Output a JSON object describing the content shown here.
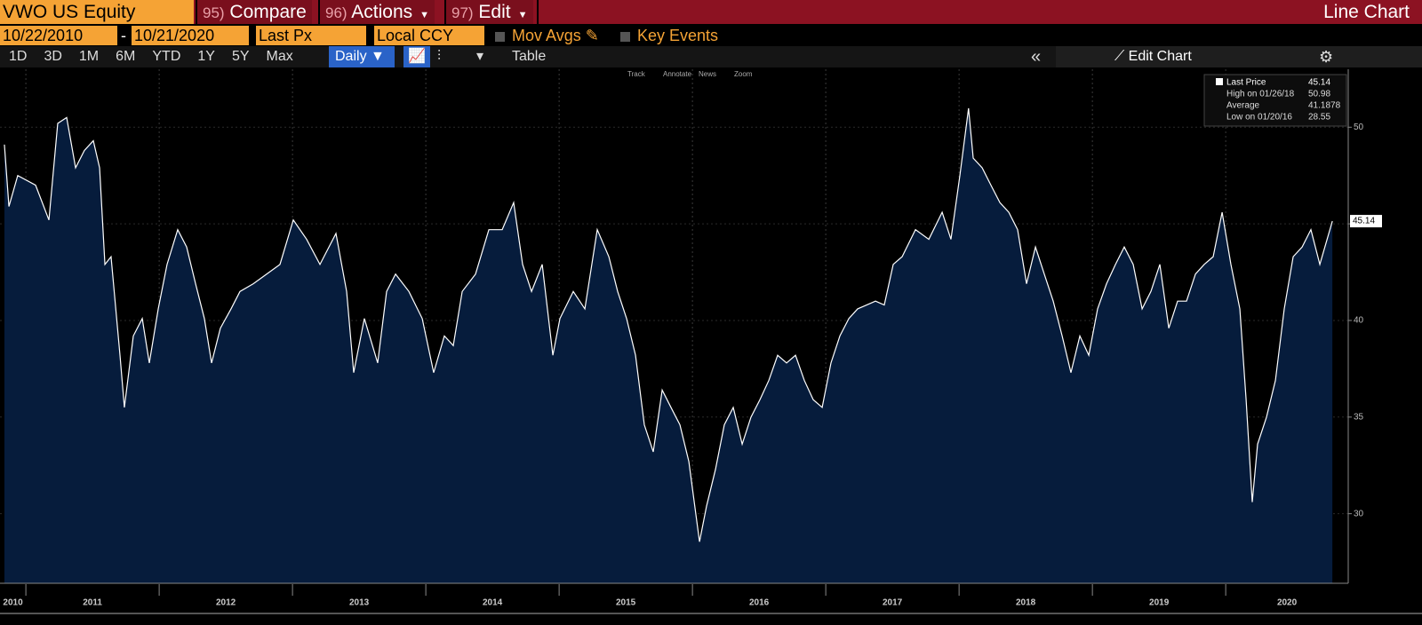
{
  "toolbar": {
    "security": "VWO US Equity",
    "menus": [
      {
        "num": "95)",
        "label": "Compare"
      },
      {
        "num": "96)",
        "label": "Actions"
      },
      {
        "num": "97)",
        "label": "Edit"
      }
    ],
    "title": "Line Chart"
  },
  "settings": {
    "start": "10/22/2010",
    "dash": "-",
    "end": "10/21/2020",
    "field": "Last Px",
    "currency": "Local CCY",
    "options": [
      "Mov Avgs",
      "Key Events"
    ]
  },
  "periods": [
    "1D",
    "3D",
    "1M",
    "6M",
    "YTD",
    "1Y",
    "5Y",
    "Max"
  ],
  "frequency": "Daily ▼",
  "table": "Table",
  "edit_chart": "Edit Chart",
  "chart_tools": [
    "Track",
    "Annotate",
    "News",
    "Zoom"
  ],
  "chart_data": {
    "type": "line",
    "x": [
      2010.839,
      2010.873,
      2010.939,
      2011.073,
      2011.173,
      2011.239,
      2011.306,
      2011.373,
      2011.439,
      2011.506,
      2011.553,
      2011.593,
      2011.639,
      2011.706,
      2011.739,
      2011.806,
      2011.873,
      2011.926,
      2011.993,
      2012.059,
      2012.139,
      2012.206,
      2012.273,
      2012.339,
      2012.393,
      2012.459,
      2012.539,
      2012.606,
      2012.706,
      2012.806,
      2012.906,
      2013.006,
      2013.106,
      2013.206,
      2013.326,
      2013.406,
      2013.459,
      2013.539,
      2013.639,
      2013.706,
      2013.773,
      2013.873,
      2013.973,
      2014.059,
      2014.139,
      2014.206,
      2014.273,
      2014.373,
      2014.473,
      2014.573,
      2014.659,
      2014.726,
      2014.793,
      2014.873,
      2014.953,
      2015.006,
      2015.106,
      2015.193,
      2015.286,
      2015.373,
      2015.439,
      2015.506,
      2015.573,
      2015.639,
      2015.706,
      2015.773,
      2015.839,
      2015.906,
      2015.973,
      2016.053,
      2016.106,
      2016.173,
      2016.239,
      2016.306,
      2016.373,
      2016.439,
      2016.506,
      2016.573,
      2016.639,
      2016.706,
      2016.773,
      2016.839,
      2016.906,
      2016.973,
      2017.039,
      2017.106,
      2017.173,
      2017.239,
      2017.306,
      2017.373,
      2017.439,
      2017.506,
      2017.573,
      2017.673,
      2017.773,
      2017.873,
      2017.939,
      2018.006,
      2018.071,
      2018.106,
      2018.173,
      2018.239,
      2018.306,
      2018.373,
      2018.439,
      2018.506,
      2018.573,
      2018.639,
      2018.706,
      2018.773,
      2018.839,
      2018.906,
      2018.973,
      2019.039,
      2019.106,
      2019.173,
      2019.239,
      2019.306,
      2019.373,
      2019.439,
      2019.506,
      2019.573,
      2019.639,
      2019.706,
      2019.773,
      2019.839,
      2019.906,
      2019.973,
      2020.039,
      2020.106,
      2020.153,
      2020.199,
      2020.239,
      2020.306,
      2020.373,
      2020.439,
      2020.506,
      2020.573,
      2020.639,
      2020.706,
      2020.8
    ],
    "series": [
      {
        "name": "Last Price",
        "color": "#ffffff",
        "fill": "#061c3c",
        "values": [
          49.1,
          45.9,
          47.5,
          47,
          45.2,
          50.2,
          50.5,
          47.9,
          48.8,
          49.3,
          47.9,
          42.9,
          43.3,
          38.2,
          35.5,
          39.2,
          40.1,
          37.8,
          40.6,
          42.9,
          44.7,
          43.8,
          41.9,
          40.1,
          37.8,
          39.6,
          40.6,
          41.5,
          41.9,
          42.4,
          42.9,
          45.2,
          44.2,
          42.9,
          44.5,
          41.5,
          37.3,
          40.1,
          37.8,
          41.5,
          42.4,
          41.5,
          40.1,
          37.3,
          39.2,
          38.7,
          41.5,
          42.4,
          44.7,
          44.7,
          46.1,
          42.9,
          41.5,
          42.9,
          38.2,
          40.1,
          41.5,
          40.6,
          44.7,
          43.3,
          41.5,
          40.1,
          38.2,
          34.6,
          33.2,
          36.4,
          35.5,
          34.6,
          32.7,
          28.55,
          30.4,
          32.3,
          34.6,
          35.5,
          33.6,
          35,
          35.9,
          36.9,
          38.2,
          37.8,
          38.2,
          36.9,
          35.9,
          35.5,
          37.8,
          39.2,
          40.1,
          40.6,
          40.8,
          41,
          40.8,
          42.9,
          43.3,
          44.7,
          44.2,
          45.6,
          44.2,
          47.5,
          50.98,
          48.4,
          47.9,
          47,
          46.1,
          45.6,
          44.7,
          41.9,
          43.8,
          42.4,
          41,
          39.2,
          37.3,
          39.2,
          38.2,
          40.6,
          41.9,
          42.9,
          43.8,
          42.9,
          40.6,
          41.5,
          42.9,
          39.6,
          41,
          41,
          42.4,
          42.9,
          43.3,
          45.6,
          42.9,
          40.6,
          35.9,
          30.6,
          33.6,
          35,
          36.9,
          40.6,
          43.3,
          43.8,
          44.7,
          42.9,
          45.14
        ]
      }
    ],
    "last_price": 45.14,
    "stats": [
      {
        "label": "High on 01/26/18",
        "value": 50.98
      },
      {
        "label": "Average",
        "value": 41.1878
      },
      {
        "label": "Low on 01/20/16",
        "value": 28.55
      }
    ],
    "xlim": [
      2010.806,
      2020.919
    ],
    "xticks": [
      2010,
      2011,
      2012,
      2013,
      2014,
      2015,
      2016,
      2017,
      2018,
      2019,
      2020
    ],
    "ylim": [
      26.4,
      53.0
    ],
    "yticks": [
      30,
      35,
      40,
      45,
      50
    ],
    "grid": true,
    "legend": "upper right"
  }
}
